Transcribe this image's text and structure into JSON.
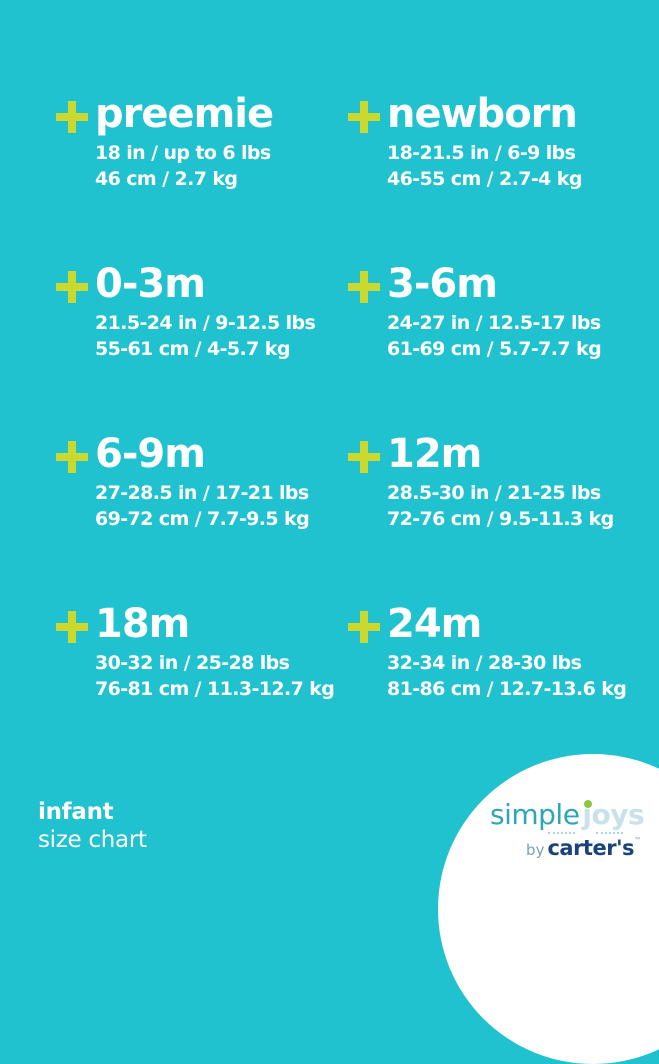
{
  "page": {
    "background_color": "#1fc2ce",
    "accent_color": "#cbd92e",
    "text_color": "#ffffff"
  },
  "sizes": [
    {
      "label": "preemie",
      "imperial": "18 in / up to 6 lbs",
      "metric": "46 cm / 2.7 kg"
    },
    {
      "label": "newborn",
      "imperial": "18-21.5 in / 6-9 lbs",
      "metric": "46-55 cm / 2.7-4 kg"
    },
    {
      "label": "0-3m",
      "imperial": "21.5-24 in / 9-12.5 lbs",
      "metric": "55-61 cm / 4-5.7 kg"
    },
    {
      "label": "3-6m",
      "imperial": "24-27 in / 12.5-17 lbs",
      "metric": "61-69 cm / 5.7-7.7 kg"
    },
    {
      "label": "6-9m",
      "imperial": "27-28.5 in / 17-21 lbs",
      "metric": "69-72 cm / 7.7-9.5 kg"
    },
    {
      "label": "12m",
      "imperial": "28.5-30 in / 21-25 lbs",
      "metric": "72-76 cm / 9.5-11.3 kg"
    },
    {
      "label": "18m",
      "imperial": "30-32 in / 25-28 lbs",
      "metric": "76-81 cm / 11.3-12.7 kg"
    },
    {
      "label": "24m",
      "imperial": "32-34 in / 28-30 lbs",
      "metric": "81-86 cm / 12.7-13.6 kg"
    }
  ],
  "footer": {
    "title": "infant",
    "subtitle": "size chart"
  },
  "logo": {
    "simple": "simple",
    "joys": "joys",
    "by": "by",
    "brand": "carter's",
    "tm": "™",
    "simple_color": "#2ea6b6",
    "joys_color": "#c9e1ea",
    "dot_color": "#8fc43f",
    "carters_color": "#1a4378"
  },
  "chart_data": {
    "type": "table",
    "title": "infant size chart",
    "columns": [
      "size",
      "length_in",
      "weight_lbs",
      "length_cm",
      "weight_kg"
    ],
    "rows": [
      [
        "preemie",
        "18",
        "up to 6",
        "46",
        "2.7"
      ],
      [
        "newborn",
        "18-21.5",
        "6-9",
        "46-55",
        "2.7-4"
      ],
      [
        "0-3m",
        "21.5-24",
        "9-12.5",
        "55-61",
        "4-5.7"
      ],
      [
        "3-6m",
        "24-27",
        "12.5-17",
        "61-69",
        "5.7-7.7"
      ],
      [
        "6-9m",
        "27-28.5",
        "17-21",
        "69-72",
        "7.7-9.5"
      ],
      [
        "12m",
        "28.5-30",
        "21-25",
        "72-76",
        "9.5-11.3"
      ],
      [
        "18m",
        "30-32",
        "25-28",
        "76-81",
        "11.3-12.7"
      ],
      [
        "24m",
        "32-34",
        "28-30",
        "81-86",
        "12.7-13.6"
      ]
    ]
  }
}
